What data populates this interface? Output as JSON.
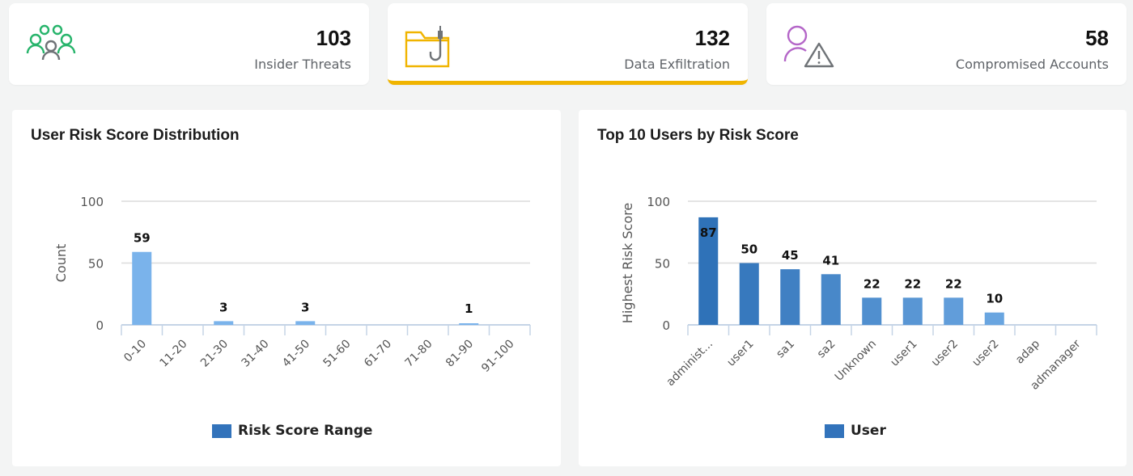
{
  "kpis": [
    {
      "value": "103",
      "label": "Insider Threats",
      "icon": "users-group-icon"
    },
    {
      "value": "132",
      "label": "Data Exfiltration",
      "icon": "folder-hook-icon",
      "active": true
    },
    {
      "value": "58",
      "label": "Compromised Accounts",
      "icon": "user-warning-icon"
    }
  ],
  "panels": {
    "left": {
      "title": "User Risk Score Distribution",
      "legend": "Risk Score Range",
      "ylabel": "Count"
    },
    "right": {
      "title": "Top 10 Users by Risk Score",
      "legend": "User",
      "ylabel": "Highest Risk Score"
    }
  },
  "colors": {
    "accent": "#f0b400",
    "green": "#27b46b",
    "purple": "#b466c8",
    "gray": "#6f7377",
    "bar_light": "#7ab3eb",
    "bar_dark": "#2f72b8"
  },
  "chart_data": [
    {
      "type": "bar",
      "title": "User Risk Score Distribution",
      "xlabel": "",
      "ylabel": "Count",
      "categories": [
        "0-10",
        "11-20",
        "21-30",
        "31-40",
        "41-50",
        "51-60",
        "61-70",
        "71-80",
        "81-90",
        "91-100"
      ],
      "values": [
        59,
        0,
        3,
        0,
        3,
        0,
        0,
        0,
        1,
        0
      ],
      "data_labels": [
        "59",
        "",
        "3",
        "",
        "3",
        "",
        "",
        "",
        "1",
        ""
      ],
      "yticks": [
        0,
        50,
        100
      ],
      "ylim": [
        0,
        100
      ],
      "grid": true,
      "legend": [
        "Risk Score Range"
      ],
      "legend_position": "bottom"
    },
    {
      "type": "bar",
      "title": "Top 10 Users by Risk Score",
      "xlabel": "",
      "ylabel": "Highest Risk Score",
      "categories": [
        "administ...",
        "user1",
        "sa1",
        "sa2",
        "Unknown",
        "user1",
        "user2",
        "user2",
        "adap",
        "admanager"
      ],
      "values": [
        87,
        50,
        45,
        41,
        22,
        22,
        22,
        10,
        0,
        0
      ],
      "data_labels": [
        "87",
        "50",
        "45",
        "41",
        "22",
        "22",
        "22",
        "10",
        "",
        ""
      ],
      "yticks": [
        0,
        50,
        100
      ],
      "ylim": [
        0,
        100
      ],
      "grid": true,
      "legend": [
        "User"
      ],
      "legend_position": "bottom"
    }
  ]
}
